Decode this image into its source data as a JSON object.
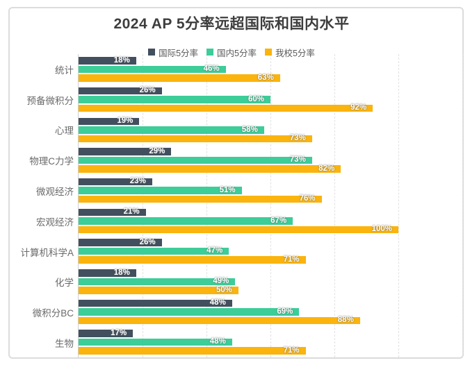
{
  "chart_data": {
    "type": "bar",
    "orientation": "horizontal",
    "title": "2024 AP 5分率远超国际和国内水平",
    "categories": [
      "统计",
      "预备微积分",
      "心理",
      "物理C力学",
      "微观经济",
      "宏观经济",
      "计算机科学A",
      "化学",
      "微积分BC",
      "生物"
    ],
    "series": [
      {
        "name": "国际5分率",
        "color": "#424F5E",
        "values": [
          18,
          26,
          19,
          29,
          23,
          21,
          26,
          18,
          48,
          17
        ]
      },
      {
        "name": "国内5分率",
        "color": "#3CCD99",
        "values": [
          46,
          60,
          58,
          73,
          51,
          67,
          47,
          49,
          69,
          48
        ]
      },
      {
        "name": "我校5分率",
        "color": "#FBB40D",
        "values": [
          63,
          92,
          73,
          82,
          76,
          100,
          71,
          50,
          88,
          71
        ]
      }
    ],
    "value_suffix": "%",
    "xlim": [
      0,
      120
    ],
    "gridline_interval": 20,
    "grid": "vertical-dashed",
    "legend_position": "top",
    "data_labels": "inside-end",
    "colors": {
      "title_text": "#3d3d3d",
      "legend_text": "#595959",
      "category_text": "#6a6a6a",
      "gridline": "#e1e1e1",
      "axis_line": "#cfcfcf",
      "frame_border": "#dcdcdc",
      "label_text": "#ffffff"
    }
  }
}
